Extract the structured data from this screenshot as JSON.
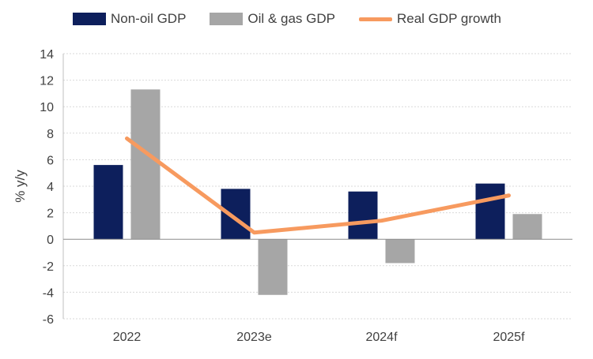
{
  "chart_data": {
    "type": "bar",
    "categories": [
      "2022",
      "2023e",
      "2024f",
      "2025f"
    ],
    "series": [
      {
        "name": "Non-oil GDP",
        "kind": "bar",
        "color": "#0d1f5c",
        "values": [
          5.6,
          3.8,
          3.6,
          4.2
        ]
      },
      {
        "name": "Oil & gas GDP",
        "kind": "bar",
        "color": "#a6a6a6",
        "values": [
          11.3,
          -4.2,
          -1.8,
          1.9
        ]
      },
      {
        "name": "Real GDP growth",
        "kind": "line",
        "color": "#f79a5f",
        "values": [
          7.6,
          0.5,
          1.4,
          3.3
        ]
      }
    ],
    "title": "",
    "xlabel": "",
    "ylabel": "% y/y",
    "ylim": [
      -6,
      14
    ],
    "yticks": [
      "14",
      "12",
      "10",
      "8",
      "6",
      "4",
      "2",
      "0",
      "-2",
      "-4",
      "-6"
    ],
    "grid": true,
    "legend_position": "top"
  }
}
